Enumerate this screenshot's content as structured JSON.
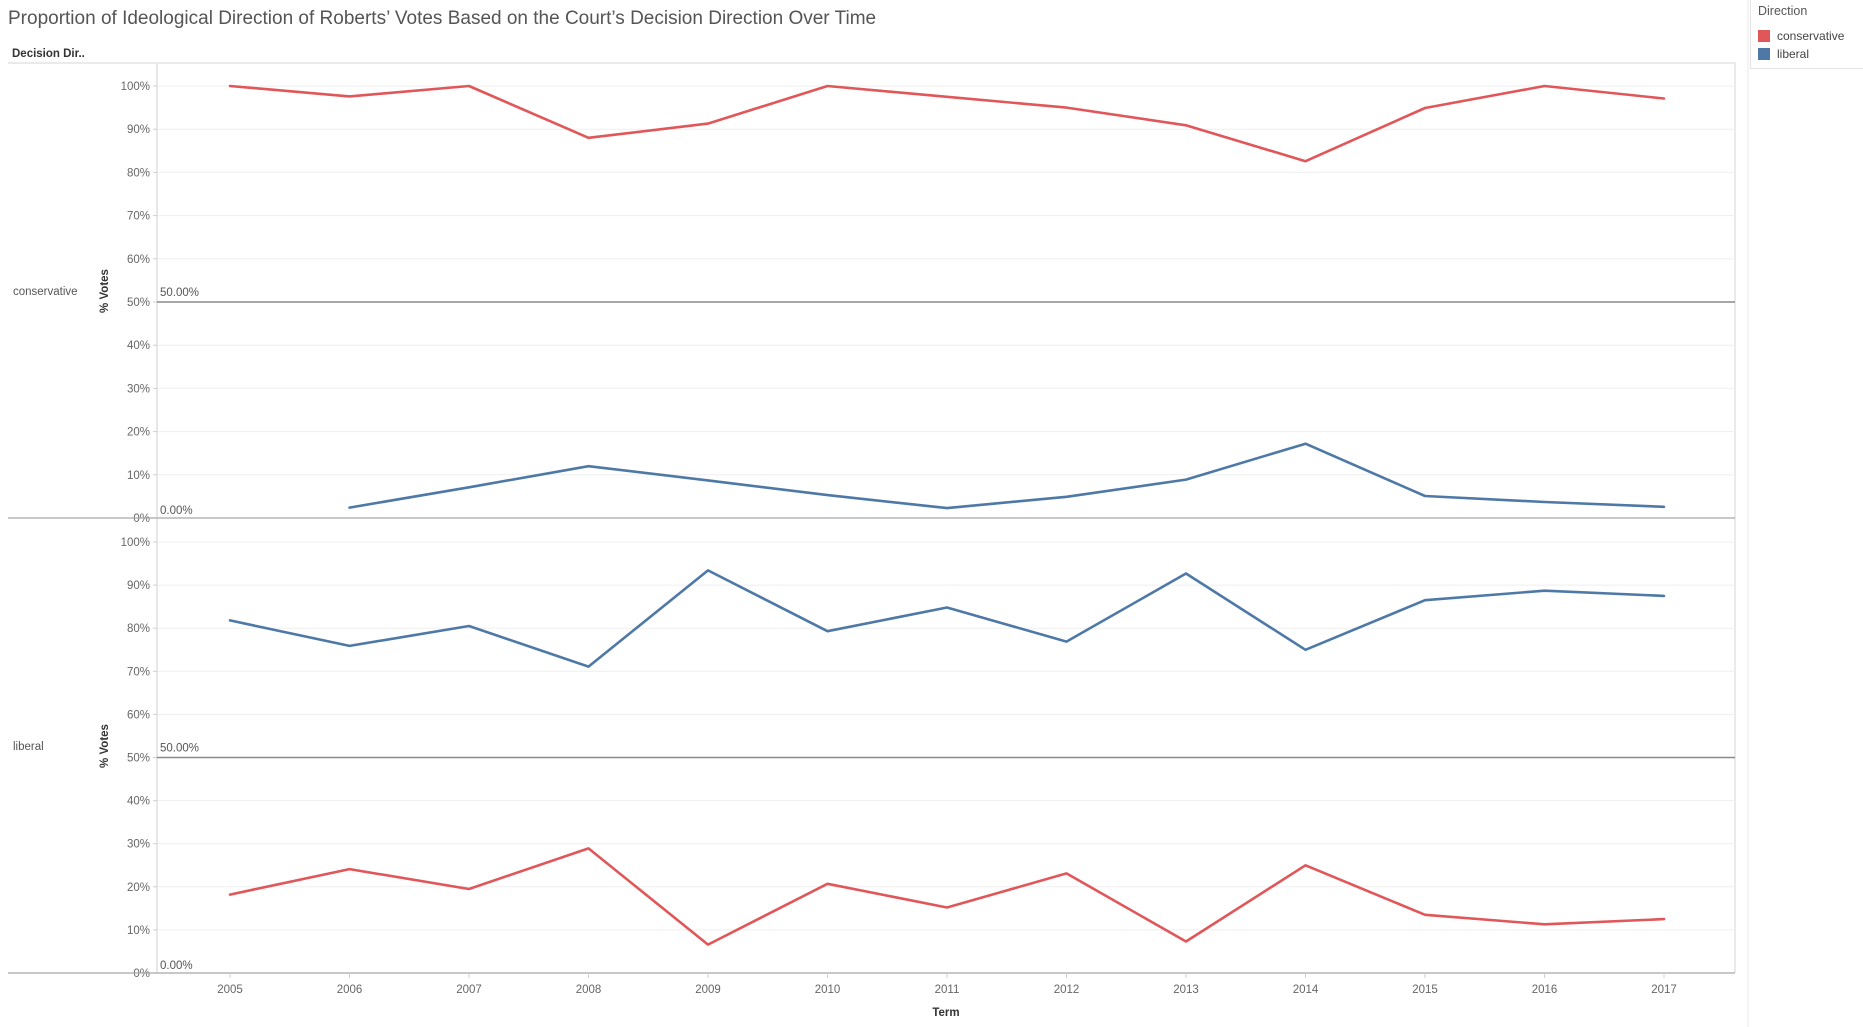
{
  "title": "Proportion of Ideological Direction of Roberts’ Votes Based on the Court’s Decision Direction Over Time",
  "row_header": "Decision Dir..",
  "legend": {
    "title": "Direction",
    "items": [
      {
        "label": "conservative",
        "color": "#e15759"
      },
      {
        "label": "liberal",
        "color": "#4e79a7"
      }
    ]
  },
  "chart_data": {
    "type": "line",
    "title": "Proportion of Ideological Direction of Roberts’ Votes Based on the Court’s Decision Direction Over Time",
    "xlabel": "Term",
    "ylabel": "% Votes",
    "x": [
      2005,
      2006,
      2007,
      2008,
      2009,
      2010,
      2011,
      2012,
      2013,
      2014,
      2015,
      2016,
      2017
    ],
    "ylim": [
      0,
      100
    ],
    "yticks": [
      "0%",
      "10%",
      "20%",
      "30%",
      "40%",
      "50%",
      "60%",
      "70%",
      "80%",
      "90%",
      "100%"
    ],
    "grid": true,
    "legend_position": "top-right",
    "reference_line": {
      "value": 50,
      "label": "50.00%"
    },
    "zero_label": "0.00%",
    "panels": [
      {
        "label": "conservative",
        "series": [
          {
            "name": "conservative",
            "color": "#e15759",
            "values": [
              100,
              97.6,
              100,
              88,
              91.3,
              100,
              97.5,
              95,
              90.9,
              82.6,
              94.9,
              100,
              97.1
            ]
          },
          {
            "name": "liberal",
            "color": "#4e79a7",
            "values": [
              null,
              2.4,
              7.1,
              12,
              8.7,
              5.3,
              2.3,
              4.9,
              8.9,
              17.2,
              5.1,
              3.7,
              2.6
            ]
          }
        ]
      },
      {
        "label": "liberal",
        "series": [
          {
            "name": "liberal",
            "color": "#4e79a7",
            "values": [
              81.8,
              75.9,
              80.5,
              71.1,
              93.4,
              79.3,
              84.8,
              76.9,
              92.7,
              75,
              86.5,
              88.7,
              87.5
            ]
          },
          {
            "name": "conservative",
            "color": "#e15759",
            "values": [
              18.2,
              24.1,
              19.5,
              28.9,
              6.6,
              20.7,
              15.2,
              23.1,
              7.3,
              25,
              13.5,
              11.3,
              12.5
            ]
          }
        ]
      }
    ]
  }
}
